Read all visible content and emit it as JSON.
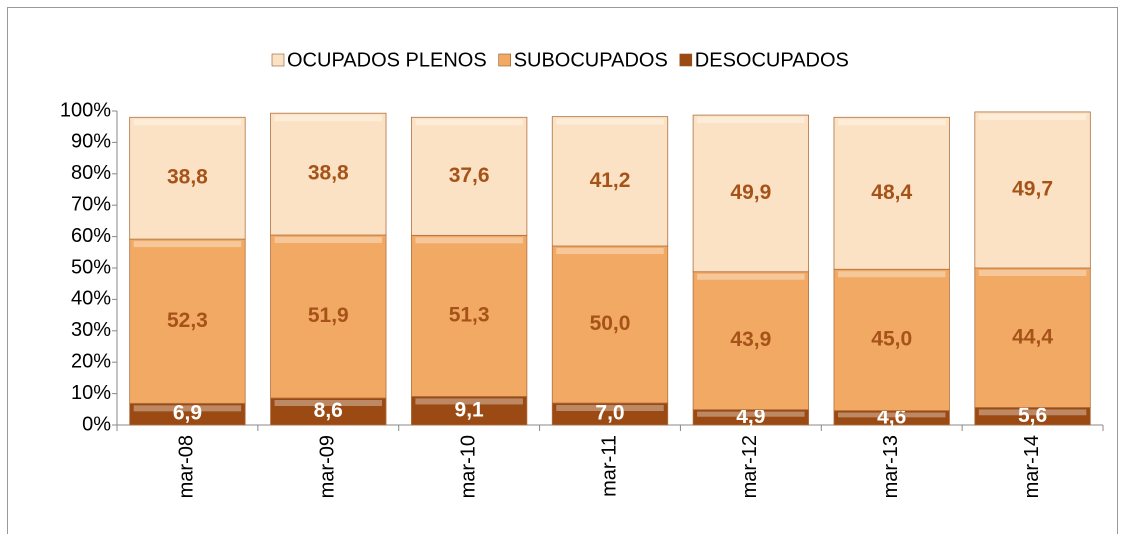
{
  "chart_data": {
    "type": "stacked_bar",
    "categories": [
      "mar-08",
      "mar-09",
      "mar-10",
      "mar-11",
      "mar-12",
      "mar-13",
      "mar-14"
    ],
    "series": [
      {
        "name": "DESOCUPADOS",
        "color": "#9a4a12",
        "label_color": "#ffffff",
        "values": [
          6.9,
          8.6,
          9.1,
          7.0,
          4.9,
          4.6,
          5.6
        ],
        "value_labels": [
          "6,9",
          "8,6",
          "9,1",
          "7,0",
          "4,9",
          "4,6",
          "5,6"
        ]
      },
      {
        "name": "SUBOCUPADOS",
        "color": "#f2a963",
        "label_color": "#a6531a",
        "values": [
          52.3,
          51.9,
          51.3,
          50.0,
          43.9,
          45.0,
          44.4
        ],
        "value_labels": [
          "52,3",
          "51,9",
          "51,3",
          "50,0",
          "43,9",
          "45,0",
          "44,4"
        ]
      },
      {
        "name": "OCUPADOS PLENOS",
        "color": "#fbe2c4",
        "label_color": "#a6531a",
        "values": [
          38.8,
          38.8,
          37.6,
          41.2,
          49.9,
          48.4,
          49.7
        ],
        "value_labels": [
          "38,8",
          "38,8",
          "37,6",
          "41,2",
          "49,9",
          "48,4",
          "49,7"
        ]
      }
    ],
    "ylim": [
      0,
      100
    ],
    "yticks": [
      {
        "value": 0,
        "label": "0%"
      },
      {
        "value": 10,
        "label": "10%"
      },
      {
        "value": 20,
        "label": "20%"
      },
      {
        "value": 30,
        "label": "30%"
      },
      {
        "value": 40,
        "label": "40%"
      },
      {
        "value": 50,
        "label": "50%"
      },
      {
        "value": 60,
        "label": "60%"
      },
      {
        "value": 70,
        "label": "70%"
      },
      {
        "value": 80,
        "label": "80%"
      },
      {
        "value": 90,
        "label": "90%"
      },
      {
        "value": 100,
        "label": "100%"
      }
    ],
    "grid": false,
    "legend": "top"
  }
}
